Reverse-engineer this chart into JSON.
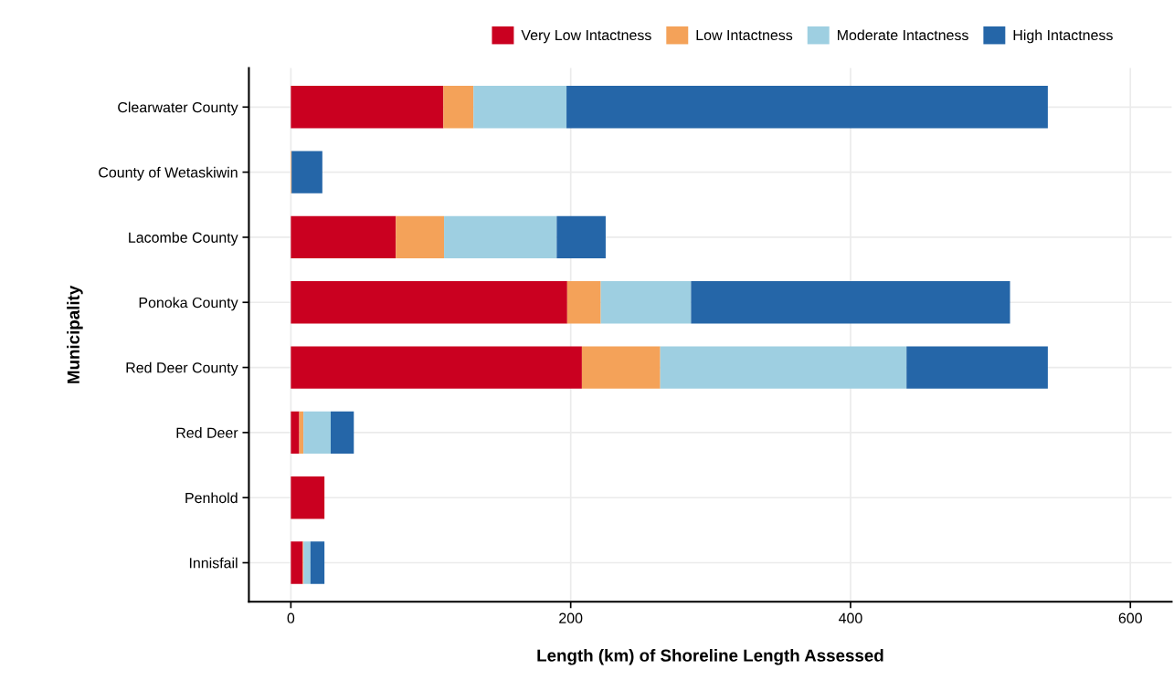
{
  "chart_data": {
    "type": "bar",
    "orientation": "horizontal",
    "stacked": true,
    "xlabel": "Length (km) of Shoreline Length Assessed",
    "ylabel": "Municipality",
    "categories": [
      "Clearwater County",
      "County of Wetaskiwin",
      "Lacombe County",
      "Ponoka County",
      "Red Deer County",
      "Red Deer",
      "Penhold",
      "Innisfail"
    ],
    "series": [
      {
        "name": "Very Low Intactness",
        "color": "#ca0020",
        "values": [
          109,
          0,
          75,
          197.5,
          208,
          6,
          24,
          8.5
        ]
      },
      {
        "name": "Low Intactness",
        "color": "#f4a259",
        "values": [
          21.5,
          0.5,
          34.5,
          24,
          56,
          3,
          0,
          0.5
        ]
      },
      {
        "name": "Moderate Intactness",
        "color": "#9ecfe1",
        "values": [
          66.5,
          0,
          80.5,
          64.5,
          176,
          19.5,
          0,
          5
        ]
      },
      {
        "name": "High Intactness",
        "color": "#2566a8",
        "values": [
          344,
          22,
          35,
          228,
          101,
          16.5,
          0,
          10
        ]
      }
    ],
    "xlim": [
      -30,
      629.5
    ],
    "xticks": [
      0,
      200,
      400,
      600
    ],
    "grid": true,
    "legend": "top"
  }
}
